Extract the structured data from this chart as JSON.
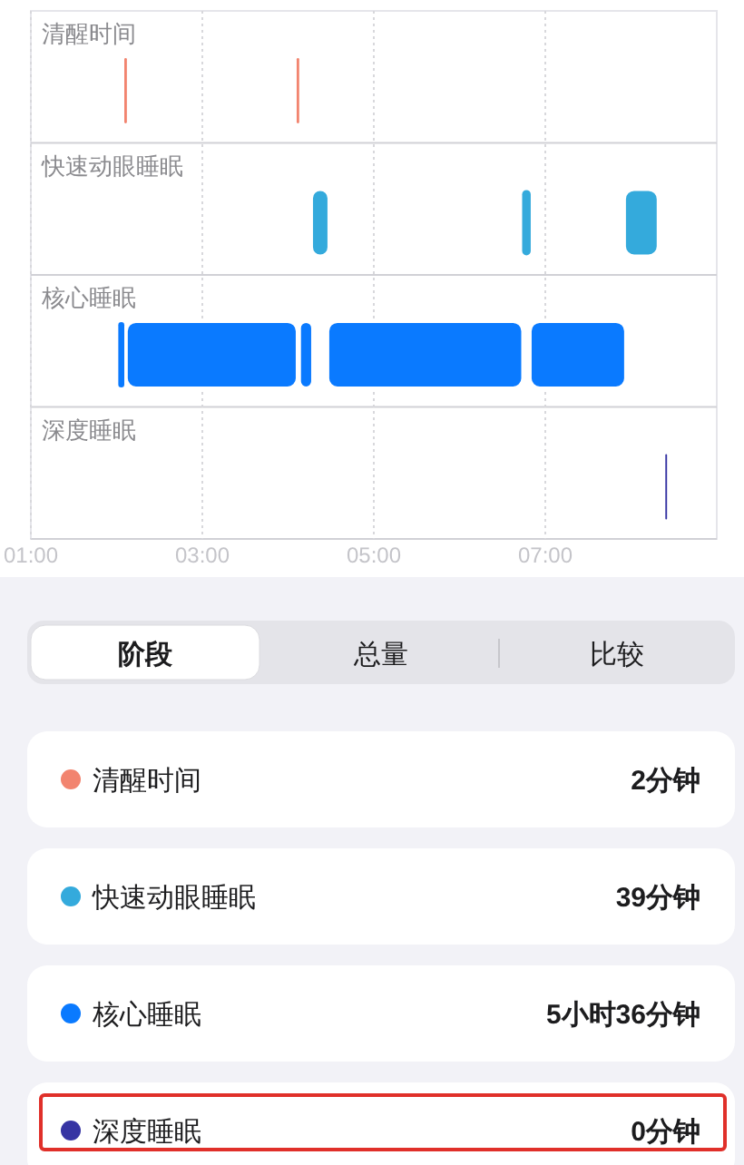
{
  "chart_data": [
    {
      "type": "bar",
      "orientation": "horizontal",
      "categories": [
        "清醒时间",
        "快速动眼睡眠",
        "核心睡眠",
        "深度睡眠"
      ],
      "xlim": [
        1,
        9
      ],
      "xticks": [
        {
          "value": 1,
          "label": "01:00"
        },
        {
          "value": 3,
          "label": "03:00"
        },
        {
          "value": 5,
          "label": "05:00"
        },
        {
          "value": 7,
          "label": "07:00"
        }
      ],
      "grid": "x",
      "series": [
        {
          "color": "#0a7aff",
          "base": [
            null,
            null,
            2.02,
            null
          ],
          "values": [
            null,
            null,
            0.07,
            null
          ]
        },
        {
          "color": "#f2846f",
          "base": [
            2.09,
            null,
            null,
            null
          ],
          "values": [
            0.03,
            null,
            null,
            null
          ]
        },
        {
          "color": "#0a7aff",
          "base": [
            null,
            null,
            2.12,
            null
          ],
          "values": [
            null,
            null,
            1.98,
            null
          ]
        },
        {
          "color": "#f2846f",
          "base": [
            4.1,
            null,
            null,
            null
          ],
          "values": [
            0.03,
            null,
            null,
            null
          ]
        },
        {
          "color": "#0a7aff",
          "base": [
            null,
            null,
            4.14,
            null
          ],
          "values": [
            null,
            null,
            0.14,
            null
          ]
        },
        {
          "color": "#34aadc",
          "base": [
            null,
            4.28,
            null,
            null
          ],
          "values": [
            null,
            0.19,
            null,
            null
          ]
        },
        {
          "color": "#0a7aff",
          "base": [
            null,
            null,
            4.47,
            null
          ],
          "values": [
            null,
            null,
            2.26,
            null
          ]
        },
        {
          "color": "#34aadc",
          "base": [
            null,
            6.73,
            null,
            null
          ],
          "values": [
            null,
            0.1,
            null,
            null
          ]
        },
        {
          "color": "#0a7aff",
          "base": [
            null,
            null,
            6.83,
            null
          ],
          "values": [
            null,
            null,
            1.1,
            null
          ]
        },
        {
          "color": "#34aadc",
          "base": [
            null,
            7.93,
            null,
            null
          ],
          "values": [
            null,
            0.38,
            null,
            null
          ]
        },
        {
          "color": "#3634a3",
          "base": [
            null,
            null,
            null,
            8.4
          ],
          "values": [
            null,
            null,
            null,
            0.02
          ]
        }
      ]
    },
    {
      "type": "other",
      "annotations": [
        "阶段",
        "总量",
        "比较"
      ],
      "categories": [
        "清醒时间",
        "快速动眼睡眠",
        "核心睡眠",
        "深度睡眠"
      ],
      "value_labels": [
        "2分钟",
        "39分钟",
        "5小时36分钟",
        "0分钟"
      ],
      "colors": [
        "#f2846f",
        "#34aadc",
        "#0a7aff",
        "#3634a3"
      ]
    }
  ]
}
